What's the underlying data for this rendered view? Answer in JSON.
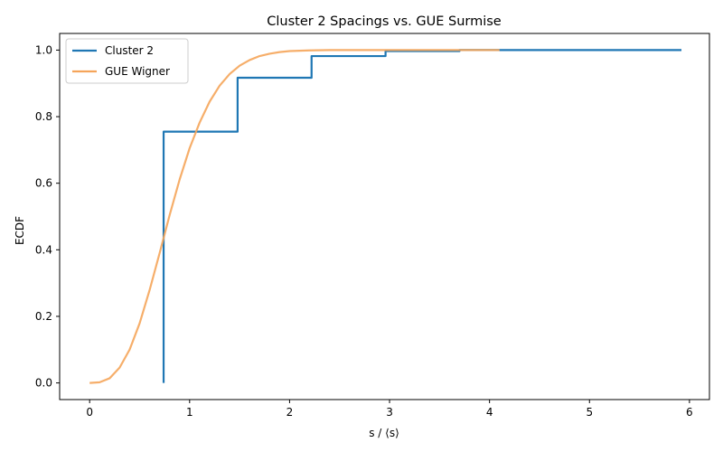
{
  "chart_data": {
    "type": "line",
    "title": "Cluster 2 Spacings vs. GUE Surmise",
    "xlabel": "s / ⟨s⟩",
    "ylabel": "ECDF",
    "xlim": [
      -0.3,
      6.2
    ],
    "ylim": [
      -0.05,
      1.05
    ],
    "xticks": [
      0,
      1,
      2,
      3,
      4,
      5,
      6
    ],
    "yticks": [
      0.0,
      0.2,
      0.4,
      0.6,
      0.8,
      1.0
    ],
    "xtick_labels": [
      "0",
      "1",
      "2",
      "3",
      "4",
      "5",
      "6"
    ],
    "ytick_labels": [
      "0.0",
      "0.2",
      "0.4",
      "0.6",
      "0.8",
      "1.0"
    ],
    "grid": false,
    "legend_position": "top-left",
    "series": [
      {
        "name": "Cluster 2",
        "kind": "step",
        "color": "#1f77b4",
        "x": [
          0.74,
          0.74,
          1.48,
          1.48,
          2.22,
          2.22,
          2.96,
          2.96,
          3.7,
          3.7,
          5.92
        ],
        "y": [
          0.0,
          0.755,
          0.755,
          0.917,
          0.917,
          0.982,
          0.982,
          0.997,
          0.997,
          1.0,
          1.0
        ]
      },
      {
        "name": "GUE Wigner",
        "kind": "curve",
        "color": "#f5a55a",
        "x": [
          0,
          0.1,
          0.2,
          0.3,
          0.4,
          0.5,
          0.6,
          0.7,
          0.8,
          0.9,
          1.0,
          1.1,
          1.2,
          1.3,
          1.4,
          1.5,
          1.6,
          1.7,
          1.8,
          1.9,
          2.0,
          2.2,
          2.4,
          2.6,
          2.8,
          3.0,
          3.3,
          3.6,
          4.1
        ],
        "y": [
          0.0,
          0.002,
          0.014,
          0.046,
          0.1,
          0.179,
          0.279,
          0.39,
          0.504,
          0.611,
          0.705,
          0.782,
          0.845,
          0.893,
          0.928,
          0.953,
          0.97,
          0.982,
          0.989,
          0.994,
          0.997,
          0.999,
          1.0,
          1.0,
          1.0,
          1.0,
          1.0,
          1.0,
          1.0
        ]
      }
    ]
  }
}
